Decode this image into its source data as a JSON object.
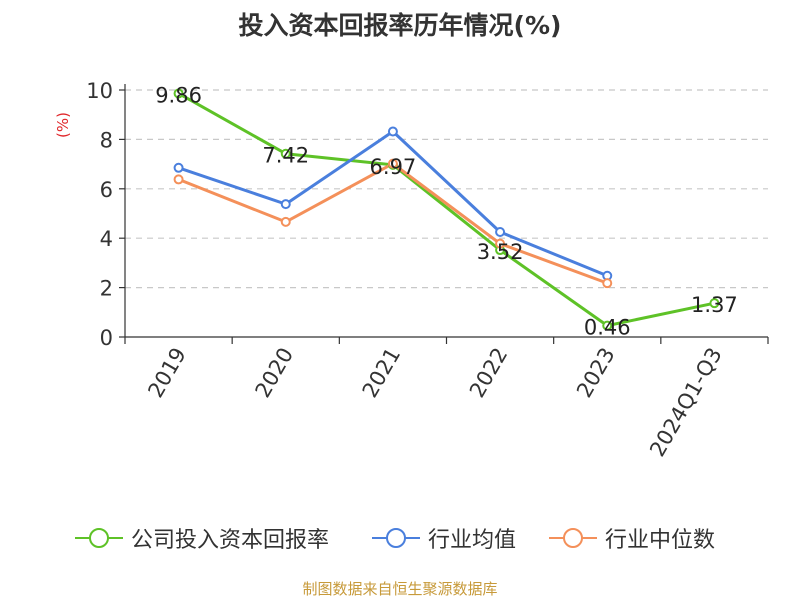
{
  "title": "投入资本回报率历年情况(%)",
  "footer": "制图数据来自恒生聚源数据库",
  "chart_data": {
    "type": "line",
    "title": "投入资本回报率历年情况(%)",
    "ylabel": "(%)",
    "xlabel": "",
    "categories": [
      "2019",
      "2020",
      "2021",
      "2022",
      "2023",
      "2024Q1-Q3"
    ],
    "ylim": [
      0,
      10
    ],
    "yticks": [
      0,
      2,
      4,
      6,
      8,
      10
    ],
    "grid": true,
    "legend_position": "bottom",
    "series": [
      {
        "name": "公司投入资本回报率",
        "color": "#5ec227",
        "values": [
          9.86,
          7.42,
          6.97,
          3.52,
          0.46,
          1.37
        ],
        "labels": [
          "9.86",
          "7.42",
          "6.97",
          "3.52",
          "0.46",
          "1.37"
        ]
      },
      {
        "name": "行业均值",
        "color": "#4a7fdd",
        "values": [
          6.85,
          5.38,
          8.32,
          4.25,
          2.48,
          null
        ]
      },
      {
        "name": "行业中位数",
        "color": "#f4905a",
        "values": [
          6.38,
          4.66,
          7.02,
          3.78,
          2.18,
          null
        ]
      }
    ]
  }
}
